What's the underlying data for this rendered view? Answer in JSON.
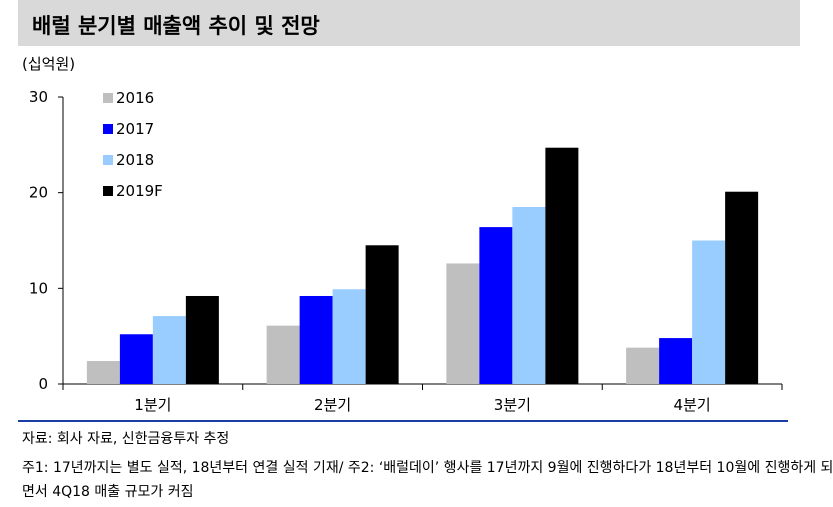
{
  "header": {
    "title": "배럴 분기별 매출액 추이 및 전망",
    "unit": "(십억원)"
  },
  "chart_data": {
    "type": "bar",
    "categories": [
      "1분기",
      "2분기",
      "3분기",
      "4분기"
    ],
    "series": [
      {
        "name": "2016",
        "color": "#bfbfbf",
        "values": [
          2.4,
          6.1,
          12.6,
          3.8
        ]
      },
      {
        "name": "2017",
        "color": "#0000ff",
        "values": [
          5.2,
          9.2,
          16.4,
          4.8
        ]
      },
      {
        "name": "2018",
        "color": "#99ccff",
        "values": [
          7.1,
          9.9,
          18.5,
          15.0
        ]
      },
      {
        "name": "2019F",
        "color": "#000000",
        "values": [
          9.2,
          14.5,
          24.7,
          20.1
        ]
      }
    ],
    "y_ticks": [
      "30",
      "20",
      "10",
      "0"
    ],
    "ylim": [
      0,
      30
    ],
    "legend": "top-left",
    "grid": false
  },
  "footer": {
    "source": "자료: 회사 자료, 신한금융투자 추정",
    "note_line1": "주1: 17년까지는 별도 실적, 18년부터 연결 실적 기재/ 주2: ‘배럴데이’ 행사를 17년까지 9월에 진행하다가 18년부터 10월에 진행하게 되",
    "note_line2": "면서 4Q18 매출 규모가 커짐"
  }
}
